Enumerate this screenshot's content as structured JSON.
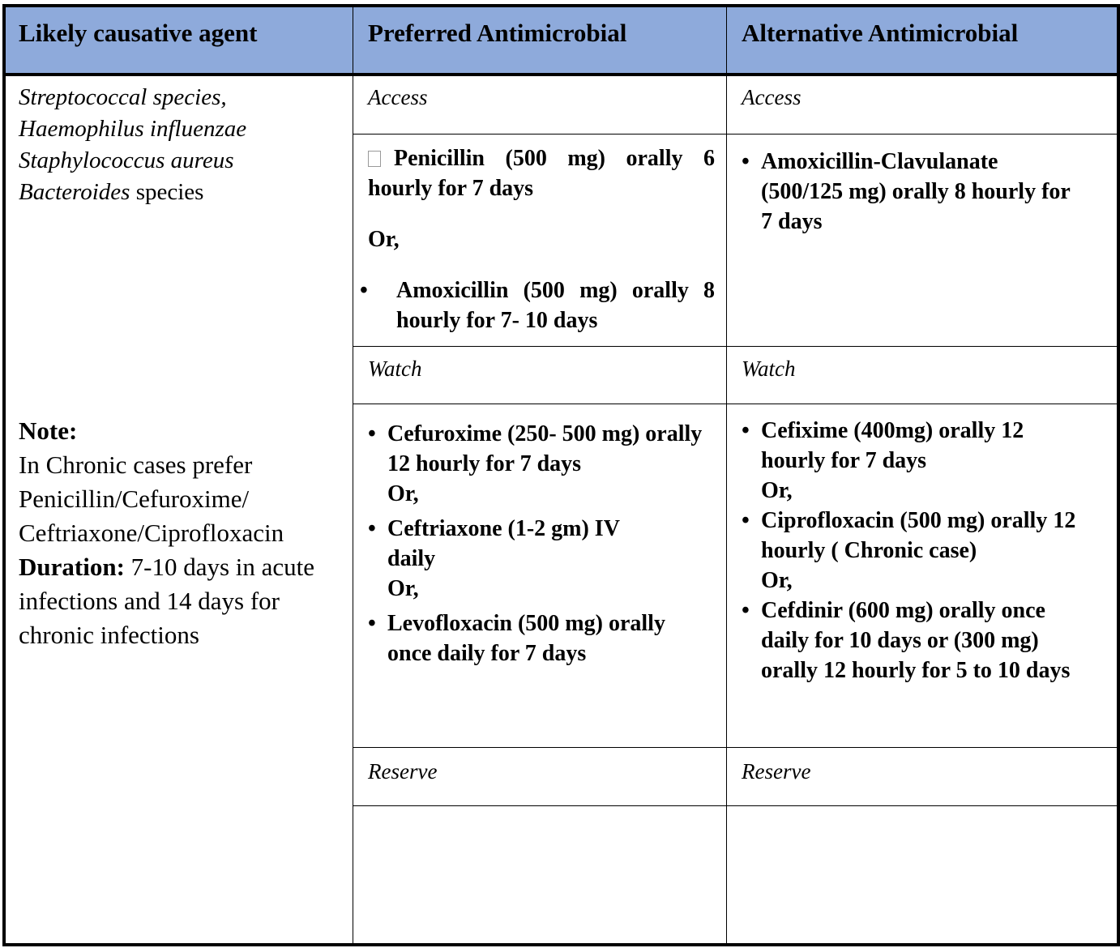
{
  "header": {
    "col1": "Likely causative agent",
    "col2": "Preferred Antimicrobial",
    "col3": "Alternative Antimicrobial"
  },
  "agents": {
    "line1": "Streptococcal species,",
    "line2": "Haemophilus  influenzae",
    "line3": "Staphylococcus aureus",
    "line4_italic": "Bacteroides",
    "line4_rest": " species"
  },
  "note": {
    "title": "Note:",
    "text": "In Chronic cases prefer Penicillin/Cefuroxime/ Ceftriaxone/Ciprofloxacin",
    "duration_label": "Duration:",
    "duration_text": " 7-10 days in acute infections and 14 days for chronic infections"
  },
  "labels": {
    "access": "Access",
    "watch": "Watch",
    "reserve": "Reserve"
  },
  "preferred": {
    "access": [
      "Penicillin (500 mg) orally 6 hourly for 7 days",
      "Or,",
      "Amoxicillin (500 mg) orally 8 hourly for 7- 10 days"
    ],
    "watch": [
      "Cefuroxime (250- 500 mg) orally  12 hourly for 7 days",
      "Or,",
      "Ceftriaxone (1-2 gm) IV daily",
      "Or,",
      "Levofloxacin (500 mg) orally once daily for 7 days"
    ]
  },
  "alternative": {
    "access": [
      "Amoxicillin-Clavulanate (500/125 mg) orally 8 hourly for 7 days"
    ],
    "watch": [
      "Cefixime (400mg) orally 12 hourly for 7 days",
      "Or,",
      "Ciprofloxacin (500 mg) orally 12 hourly ( Chronic case)",
      "Or,",
      "Cefdinir (600 mg) orally once daily for 10 days or (300 mg) orally 12 hourly for 5 to 10 days"
    ]
  },
  "colors": {
    "header_bg": "#8eaadb"
  }
}
